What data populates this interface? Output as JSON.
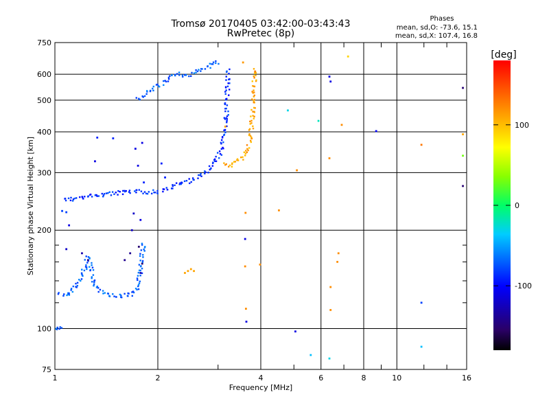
{
  "chart_data": {
    "type": "scatter",
    "title": "Tromsø 20170405 03:42:00-03:43:43",
    "subtitle": "RwPretec (8p)",
    "xlabel": "Frequency [MHz]",
    "ylabel": "Stationary phase Virtual Height [km]",
    "xscale": "log",
    "yscale": "log",
    "xlim": [
      1,
      16
    ],
    "ylim": [
      75,
      750
    ],
    "x_ticks": [
      1,
      2,
      4,
      6,
      8,
      10,
      16
    ],
    "x_tick_labels": [
      "1",
      "2",
      "4",
      "6",
      "8",
      "10",
      "16"
    ],
    "x_minor_ticks": [
      3,
      5,
      7,
      9,
      12,
      14
    ],
    "y_ticks": [
      75,
      100,
      200,
      300,
      400,
      500,
      600,
      750
    ],
    "y_tick_labels": [
      "75",
      "100",
      "200",
      "300",
      "400",
      "500",
      "600",
      "750"
    ],
    "y_minor_ticks": [
      120,
      140,
      160,
      180
    ],
    "grid": true,
    "legend": {
      "title": "Phases",
      "lines": [
        "mean, sd,O: -73.6, 15.1",
        "mean, sd,X: 107.4, 16.8"
      ]
    },
    "colorbar": {
      "label": "[deg]",
      "range": [
        -180,
        180
      ],
      "ticks": [
        100,
        0,
        -100
      ],
      "tick_labels": [
        "100",
        "0",
        "-100"
      ]
    },
    "traces": [
      {
        "comment": "O-mode F trace",
        "phase": -85,
        "points": [
          [
            1.07,
            250
          ],
          [
            1.12,
            248
          ],
          [
            1.2,
            252
          ],
          [
            1.3,
            255
          ],
          [
            1.42,
            258
          ],
          [
            1.55,
            260
          ],
          [
            1.7,
            262
          ],
          [
            1.85,
            262
          ],
          [
            2.0,
            262
          ],
          [
            2.15,
            268
          ],
          [
            2.3,
            276
          ],
          [
            2.45,
            282
          ],
          [
            2.6,
            290
          ],
          [
            2.75,
            300
          ],
          [
            2.85,
            310
          ],
          [
            2.95,
            325
          ],
          [
            3.02,
            340
          ],
          [
            3.08,
            360
          ],
          [
            3.12,
            380
          ],
          [
            3.15,
            410
          ],
          [
            3.17,
            440
          ],
          [
            3.18,
            480
          ],
          [
            3.19,
            520
          ],
          [
            3.2,
            560
          ],
          [
            3.2,
            600
          ],
          [
            3.2,
            625
          ]
        ]
      },
      {
        "comment": "X-mode F trace",
        "phase": 110,
        "points": [
          [
            3.1,
            318
          ],
          [
            3.2,
            316
          ],
          [
            3.3,
            318
          ],
          [
            3.4,
            322
          ],
          [
            3.5,
            330
          ],
          [
            3.6,
            345
          ],
          [
            3.68,
            362
          ],
          [
            3.73,
            385
          ],
          [
            3.76,
            410
          ],
          [
            3.78,
            440
          ],
          [
            3.8,
            470
          ],
          [
            3.81,
            500
          ],
          [
            3.82,
            535
          ],
          [
            3.83,
            570
          ],
          [
            3.84,
            600
          ],
          [
            3.85,
            625
          ]
        ]
      },
      {
        "comment": "E-region lower trace",
        "phase": -70,
        "points": [
          [
            1.03,
            128
          ],
          [
            1.08,
            126
          ],
          [
            1.12,
            130
          ],
          [
            1.18,
            140
          ],
          [
            1.22,
            152
          ],
          [
            1.25,
            165
          ],
          [
            1.28,
            150
          ],
          [
            1.3,
            138
          ],
          [
            1.34,
            132
          ],
          [
            1.4,
            128
          ],
          [
            1.5,
            126
          ],
          [
            1.6,
            126
          ],
          [
            1.7,
            128
          ],
          [
            1.75,
            135
          ],
          [
            1.78,
            150
          ],
          [
            1.8,
            170
          ],
          [
            1.82,
            185
          ]
        ]
      },
      {
        "comment": "upper cusp",
        "phase": -70,
        "points": [
          [
            1.75,
            505
          ],
          [
            1.85,
            520
          ],
          [
            1.95,
            540
          ],
          [
            2.05,
            560
          ],
          [
            2.15,
            585
          ],
          [
            2.3,
            600
          ],
          [
            2.45,
            595
          ],
          [
            2.6,
            610
          ],
          [
            2.75,
            625
          ],
          [
            2.85,
            640
          ],
          [
            2.95,
            650
          ],
          [
            3.05,
            655
          ]
        ]
      },
      {
        "comment": "low trace near 100 km",
        "phase": -70,
        "points": [
          [
            1.0,
            99
          ],
          [
            1.03,
            100
          ],
          [
            1.06,
            101
          ]
        ]
      }
    ],
    "scatter": [
      {
        "x": 1.05,
        "y": 229,
        "phase": -80
      },
      {
        "x": 1.08,
        "y": 227,
        "phase": -80
      },
      {
        "x": 1.1,
        "y": 207,
        "phase": -110
      },
      {
        "x": 1.33,
        "y": 384,
        "phase": -90
      },
      {
        "x": 1.48,
        "y": 382,
        "phase": -90
      },
      {
        "x": 1.31,
        "y": 325,
        "phase": -110
      },
      {
        "x": 1.72,
        "y": 355,
        "phase": -110
      },
      {
        "x": 1.75,
        "y": 315,
        "phase": -110
      },
      {
        "x": 1.8,
        "y": 370,
        "phase": -110
      },
      {
        "x": 1.82,
        "y": 280,
        "phase": -90
      },
      {
        "x": 1.7,
        "y": 225,
        "phase": -120
      },
      {
        "x": 1.78,
        "y": 215,
        "phase": -110
      },
      {
        "x": 1.68,
        "y": 200,
        "phase": -120
      },
      {
        "x": 2.1,
        "y": 290,
        "phase": -90
      },
      {
        "x": 2.05,
        "y": 320,
        "phase": -90
      },
      {
        "x": 1.08,
        "y": 175,
        "phase": -120
      },
      {
        "x": 1.2,
        "y": 170,
        "phase": -130
      },
      {
        "x": 1.25,
        "y": 162,
        "phase": -140
      },
      {
        "x": 1.6,
        "y": 162,
        "phase": -140
      },
      {
        "x": 1.66,
        "y": 170,
        "phase": -140
      },
      {
        "x": 1.76,
        "y": 178,
        "phase": -150
      },
      {
        "x": 1.8,
        "y": 158,
        "phase": -150
      },
      {
        "x": 1.78,
        "y": 148,
        "phase": -130
      },
      {
        "x": 2.4,
        "y": 148,
        "phase": 110
      },
      {
        "x": 2.45,
        "y": 150,
        "phase": 110
      },
      {
        "x": 2.5,
        "y": 152,
        "phase": 110
      },
      {
        "x": 2.55,
        "y": 150,
        "phase": 110
      },
      {
        "x": 3.15,
        "y": 415,
        "phase": 110
      },
      {
        "x": 3.55,
        "y": 652,
        "phase": 115
      },
      {
        "x": 3.85,
        "y": 612,
        "phase": 125
      },
      {
        "x": 3.6,
        "y": 188,
        "phase": -110
      },
      {
        "x": 3.6,
        "y": 155,
        "phase": 120
      },
      {
        "x": 3.62,
        "y": 115,
        "phase": 120
      },
      {
        "x": 3.63,
        "y": 105,
        "phase": -110
      },
      {
        "x": 3.61,
        "y": 226,
        "phase": 120
      },
      {
        "x": 3.98,
        "y": 157,
        "phase": 120
      },
      {
        "x": 4.52,
        "y": 230,
        "phase": 120
      },
      {
        "x": 4.8,
        "y": 465,
        "phase": -30
      },
      {
        "x": 5.1,
        "y": 305,
        "phase": 120
      },
      {
        "x": 5.05,
        "y": 98,
        "phase": -110
      },
      {
        "x": 5.6,
        "y": 83,
        "phase": -40
      },
      {
        "x": 5.9,
        "y": 432,
        "phase": -20
      },
      {
        "x": 6.35,
        "y": 590,
        "phase": -110
      },
      {
        "x": 6.4,
        "y": 570,
        "phase": -110
      },
      {
        "x": 6.35,
        "y": 332,
        "phase": 120
      },
      {
        "x": 6.4,
        "y": 134,
        "phase": 120
      },
      {
        "x": 6.4,
        "y": 114,
        "phase": 120
      },
      {
        "x": 6.35,
        "y": 81,
        "phase": -30
      },
      {
        "x": 6.75,
        "y": 170,
        "phase": 120
      },
      {
        "x": 6.7,
        "y": 160,
        "phase": 120
      },
      {
        "x": 6.9,
        "y": 420,
        "phase": 120
      },
      {
        "x": 7.2,
        "y": 680,
        "phase": 90
      },
      {
        "x": 8.7,
        "y": 402,
        "phase": -100
      },
      {
        "x": 11.8,
        "y": 365,
        "phase": 130
      },
      {
        "x": 11.8,
        "y": 120,
        "phase": -80
      },
      {
        "x": 11.8,
        "y": 88,
        "phase": -40
      },
      {
        "x": 15.6,
        "y": 545,
        "phase": -150
      },
      {
        "x": 15.6,
        "y": 393,
        "phase": 110
      },
      {
        "x": 15.6,
        "y": 338,
        "phase": 30
      },
      {
        "x": 15.6,
        "y": 273,
        "phase": -150
      }
    ]
  }
}
